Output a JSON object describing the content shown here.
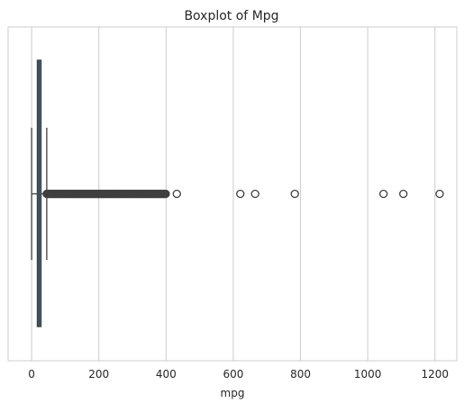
{
  "chart_data": {
    "type": "boxplot",
    "title": "Boxplot of Mpg",
    "xlabel": "mpg",
    "ylabel": "",
    "xlim": [
      -70,
      1265
    ],
    "xticks": [
      0,
      200,
      400,
      600,
      800,
      1000,
      1200
    ],
    "grid": "vertical",
    "box": {
      "color": "#3a6d96",
      "min": 0,
      "q1": 17,
      "median": 22,
      "q3": 28,
      "max": 45
    },
    "outlier_dense_range": [
      45,
      400
    ],
    "outliers": [
      432,
      621,
      665,
      783,
      1047,
      1106,
      1214
    ]
  }
}
